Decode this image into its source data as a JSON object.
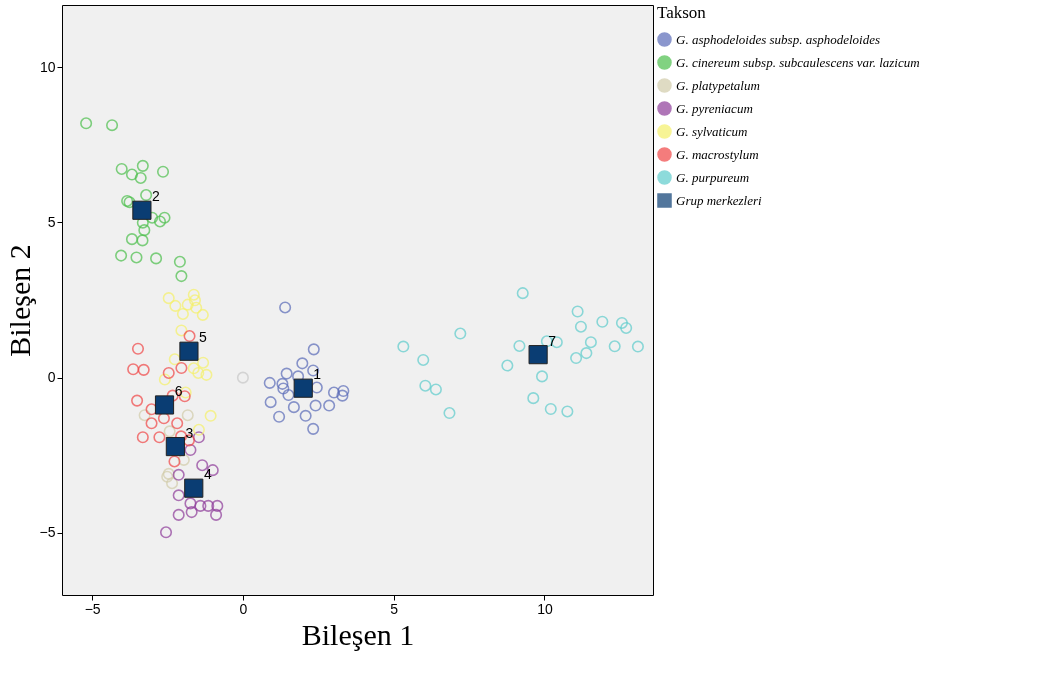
{
  "chart_data": {
    "type": "scatter",
    "xlabel": "Bileşen 1",
    "ylabel": "Bileşen 2",
    "legend_title": "Takson",
    "legend": "top right",
    "marker": "circle",
    "xlim": [
      -6,
      13.6
    ],
    "ylim": [
      -7,
      12
    ],
    "xticks": [
      -5,
      0,
      5,
      10
    ],
    "yticks": [
      -5,
      0,
      5,
      10
    ],
    "series": [
      {
        "name": "G. asphodeloides subsp. asphodeloides",
        "color": "#5a6bb8",
        "x": [
          1.4,
          2.35,
          1.97,
          1.45,
          1.83,
          2.33,
          0.89,
          1.31,
          1.34,
          1.51,
          2.45,
          3.02,
          3.33,
          3.3,
          0.92,
          1.69,
          2.41,
          2.86,
          1.2,
          2.08,
          2.33
        ],
        "values": [
          2.26,
          0.91,
          0.46,
          0.13,
          0.04,
          0.23,
          -0.17,
          -0.2,
          -0.35,
          -0.56,
          -0.32,
          -0.48,
          -0.43,
          -0.58,
          -0.79,
          -0.95,
          -0.9,
          -0.9,
          -1.26,
          -1.23,
          -1.65
        ]
      },
      {
        "name": "G. cinereum subsp. subcaulescens var. lazicum",
        "color": "#4cbf4c",
        "x": [
          -5.2,
          -4.34,
          -4.02,
          -3.32,
          -3.68,
          -3.39,
          -2.65,
          -3.21,
          -3.84,
          -3.76,
          -3.01,
          -2.6,
          -2.75,
          -3.32,
          -3.27,
          -3.68,
          -3.33,
          -4.04,
          -3.53,
          -2.88,
          -2.09,
          -2.04
        ],
        "values": [
          8.19,
          8.13,
          6.72,
          6.82,
          6.54,
          6.43,
          6.63,
          5.88,
          5.69,
          5.65,
          5.15,
          5.15,
          5.03,
          4.99,
          4.75,
          4.46,
          4.42,
          3.93,
          3.87,
          3.84,
          3.73,
          3.27
        ]
      },
      {
        "name": "G. platypetalum",
        "color": "#d2ccaa",
        "x": [
          -3.26,
          -1.83,
          -2.43,
          -1.96,
          -2.46,
          -2.35,
          -2.51
        ],
        "values": [
          -1.21,
          -1.21,
          -1.73,
          -2.65,
          -3.1,
          -3.4,
          -3.19
        ]
      },
      {
        "name": "G. pyreniacum",
        "color": "#8e3c9a",
        "x": [
          -1.46,
          -1.74,
          -1.35,
          -1.0,
          -2.13,
          -2.13,
          -1.74,
          -1.41,
          -1.15,
          -0.85,
          -1.7,
          -0.89,
          -2.13,
          -2.55
        ],
        "values": [
          -1.92,
          -2.33,
          -2.82,
          -2.98,
          -3.13,
          -3.79,
          -4.05,
          -4.13,
          -4.13,
          -4.13,
          -4.33,
          -4.42,
          -4.42,
          -4.98
        ]
      },
      {
        "name": "G. sylvaticum",
        "color": "#f5f06a",
        "x": [
          -2.46,
          -1.63,
          -1.59,
          -2.24,
          -1.83,
          -1.55,
          -1.99,
          -1.33,
          -2.04,
          -2.26,
          -1.32,
          -1.63,
          -1.48,
          -1.21,
          -2.59,
          -1.9,
          -1.07,
          -1.46
        ],
        "values": [
          2.56,
          2.67,
          2.49,
          2.31,
          2.35,
          2.25,
          2.05,
          2.02,
          1.52,
          0.59,
          0.48,
          0.3,
          0.15,
          0.09,
          -0.06,
          -0.48,
          -1.23,
          -1.68
        ]
      },
      {
        "name": "G. macrostylum",
        "color": "#f04646",
        "x": [
          -1.77,
          -3.48,
          -3.64,
          -3.29,
          -2.46,
          -2.04,
          -3.51,
          -2.33,
          -1.93,
          -3.03,
          -3.03,
          -2.62,
          -2.18,
          -3.32,
          -2.77,
          -2.05,
          -1.79,
          -2.27
        ],
        "values": [
          1.34,
          0.93,
          0.27,
          0.25,
          0.15,
          0.31,
          -0.74,
          -0.58,
          -0.6,
          -1.02,
          -1.47,
          -1.31,
          -1.47,
          -1.92,
          -1.92,
          -1.89,
          -2.02,
          -2.7
        ]
      },
      {
        "name": "G. purpureum",
        "color": "#5ecccc",
        "x": [
          9.28,
          7.21,
          5.32,
          5.98,
          6.05,
          6.4,
          6.85,
          9.17,
          8.77,
          9.92,
          9.63,
          10.21,
          10.76,
          10.08,
          10.41,
          11.1,
          11.21,
          11.92,
          12.57,
          12.71,
          11.54,
          11.39,
          11.05,
          12.33,
          13.1
        ],
        "values": [
          2.72,
          1.42,
          1.0,
          0.57,
          -0.26,
          -0.38,
          -1.14,
          1.02,
          0.39,
          0.04,
          -0.66,
          -1.01,
          -1.09,
          1.17,
          1.14,
          2.13,
          1.64,
          1.8,
          1.76,
          1.6,
          1.14,
          0.79,
          0.63,
          1.01,
          1.0
        ]
      },
      {
        "color": "#c8c8c8",
        "x": [
          0.0
        ],
        "values": [
          0.0
        ]
      },
      {
        "name": "Grup merkezleri",
        "color": "#0a3d73",
        "marker": "square",
        "x": [
          2.0,
          -3.35,
          -2.24,
          -1.63,
          -1.79,
          -2.6,
          9.79
        ],
        "values": [
          -0.34,
          5.39,
          -2.22,
          -3.56,
          0.85,
          -0.88,
          0.74
        ]
      }
    ],
    "annotations": [
      {
        "text": "1",
        "x": 2.0,
        "y": -0.34
      },
      {
        "text": "2",
        "x": -3.35,
        "y": 5.39
      },
      {
        "text": "3",
        "x": -2.24,
        "y": -2.22
      },
      {
        "text": "4",
        "x": -1.63,
        "y": -3.56
      },
      {
        "text": "5",
        "x": -1.79,
        "y": 0.85
      },
      {
        "text": "6",
        "x": -2.6,
        "y": -0.88
      },
      {
        "text": "7",
        "x": 9.79,
        "y": 0.74
      }
    ]
  }
}
